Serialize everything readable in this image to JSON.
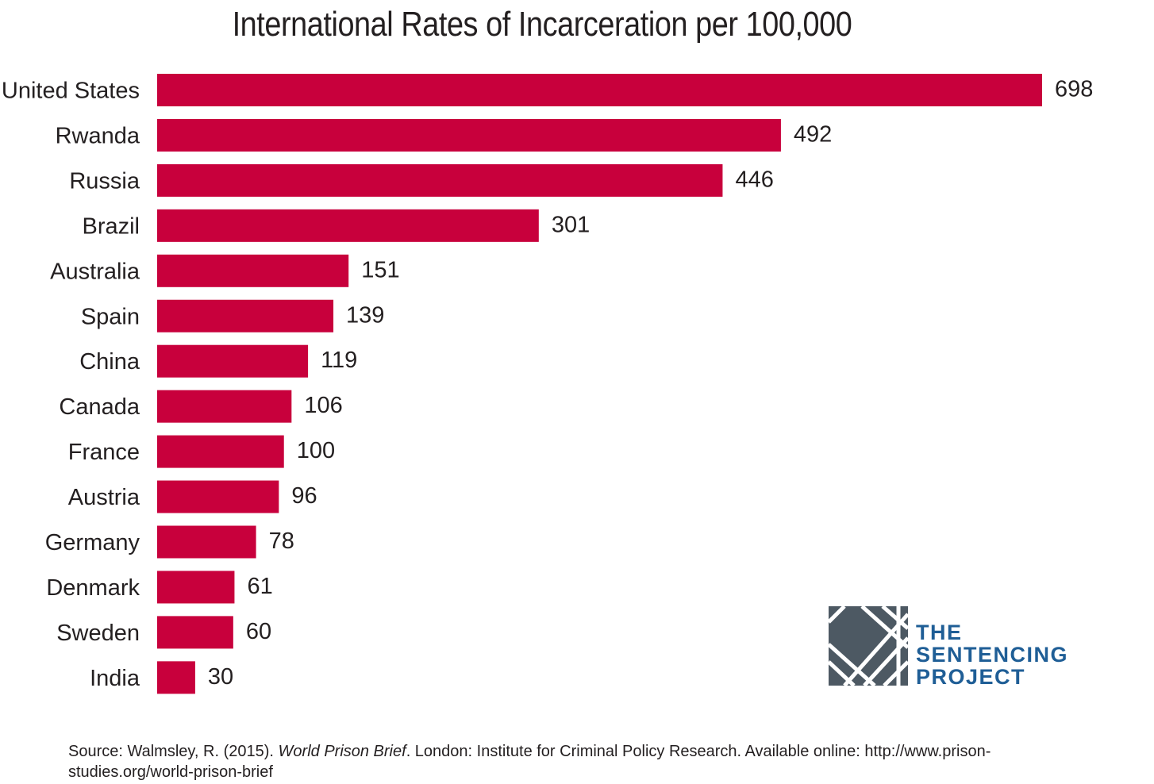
{
  "chart_data": {
    "type": "bar",
    "orientation": "horizontal",
    "title": "International Rates of Incarceration per 100,000",
    "categories": [
      "United States",
      "Rwanda",
      "Russia",
      "Brazil",
      "Australia",
      "Spain",
      "China",
      "Canada",
      "France",
      "Austria",
      "Germany",
      "Denmark",
      "Sweden",
      "India"
    ],
    "values": [
      698,
      492,
      446,
      301,
      151,
      139,
      119,
      106,
      100,
      96,
      78,
      61,
      60,
      30
    ],
    "bar_color": "#c8003c",
    "xlim": [
      0,
      698
    ],
    "grid": false,
    "legend": "none"
  },
  "logo": {
    "line1": "THE",
    "line2": "SENTENCING",
    "line3": "PROJECT",
    "color": "#1f5e96",
    "mark_color": "#4d5963"
  },
  "source": {
    "prefix": "Source: Walmsley, R. (2015). ",
    "title": "World Prison Brief",
    "suffix": ". London: Institute for Criminal Policy Research. Available online: http://www.prison-studies.org/world-prison-brief"
  }
}
